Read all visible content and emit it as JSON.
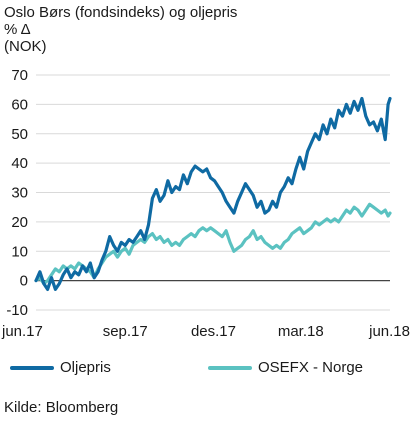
{
  "header": {
    "title": "Oslo Børs (fondsindeks) og oljepris",
    "unit_line1": "% Δ",
    "unit_line2": "(NOK)"
  },
  "source": "Kilde: Bloomberg",
  "colors": {
    "oljepris": "#0f6aa3",
    "osefx": "#5bc2c1",
    "grid": "#d9d9d9",
    "zero": "#444444"
  },
  "chart_data": {
    "type": "line",
    "title": "Oslo Børs (fondsindeks) og oljepris",
    "ylabel": "% Δ (NOK)",
    "xlabel": "",
    "ylim": [
      -10,
      70
    ],
    "yticks": [
      -10,
      0,
      10,
      20,
      30,
      40,
      50,
      60,
      70
    ],
    "xlim": [
      "2017-06-01",
      "2018-06-01"
    ],
    "xticks": [
      {
        "label": "jun.17",
        "date": "2017-06-01"
      },
      {
        "label": "sep.17",
        "date": "2017-09-01"
      },
      {
        "label": "des.17",
        "date": "2017-12-01"
      },
      {
        "label": "mar.18",
        "date": "2018-03-01"
      },
      {
        "label": "jun.18",
        "date": "2018-06-01"
      }
    ],
    "grid": true,
    "legend_position": "bottom",
    "series": [
      {
        "name": "Oljepris",
        "color": "#0f6aa3",
        "points": [
          [
            "2017-06-01",
            0
          ],
          [
            "2017-06-05",
            3
          ],
          [
            "2017-06-09",
            -1
          ],
          [
            "2017-06-13",
            -3
          ],
          [
            "2017-06-17",
            1
          ],
          [
            "2017-06-21",
            -3
          ],
          [
            "2017-06-25",
            -1
          ],
          [
            "2017-06-29",
            2
          ],
          [
            "2017-07-03",
            4
          ],
          [
            "2017-07-07",
            1
          ],
          [
            "2017-07-11",
            3
          ],
          [
            "2017-07-15",
            2
          ],
          [
            "2017-07-19",
            5
          ],
          [
            "2017-07-23",
            3
          ],
          [
            "2017-07-27",
            6
          ],
          [
            "2017-07-31",
            1
          ],
          [
            "2017-08-04",
            3
          ],
          [
            "2017-08-08",
            7
          ],
          [
            "2017-08-12",
            10
          ],
          [
            "2017-08-16",
            15
          ],
          [
            "2017-08-20",
            12
          ],
          [
            "2017-08-24",
            10
          ],
          [
            "2017-08-28",
            13
          ],
          [
            "2017-09-01",
            12
          ],
          [
            "2017-09-05",
            14
          ],
          [
            "2017-09-09",
            13
          ],
          [
            "2017-09-13",
            15
          ],
          [
            "2017-09-17",
            17
          ],
          [
            "2017-09-21",
            14
          ],
          [
            "2017-09-25",
            19
          ],
          [
            "2017-09-29",
            28
          ],
          [
            "2017-10-03",
            31
          ],
          [
            "2017-10-07",
            27
          ],
          [
            "2017-10-11",
            29
          ],
          [
            "2017-10-15",
            34
          ],
          [
            "2017-10-19",
            30
          ],
          [
            "2017-10-23",
            32
          ],
          [
            "2017-10-27",
            31
          ],
          [
            "2017-10-31",
            36
          ],
          [
            "2017-11-04",
            33
          ],
          [
            "2017-11-08",
            37
          ],
          [
            "2017-11-12",
            39
          ],
          [
            "2017-11-16",
            38
          ],
          [
            "2017-11-20",
            37
          ],
          [
            "2017-11-24",
            38
          ],
          [
            "2017-11-28",
            35
          ],
          [
            "2017-12-02",
            34
          ],
          [
            "2017-12-06",
            32
          ],
          [
            "2017-12-10",
            30
          ],
          [
            "2017-12-14",
            27
          ],
          [
            "2017-12-18",
            25
          ],
          [
            "2017-12-22",
            23
          ],
          [
            "2017-12-26",
            27
          ],
          [
            "2017-12-30",
            30
          ],
          [
            "2018-01-03",
            33
          ],
          [
            "2018-01-07",
            31
          ],
          [
            "2018-01-11",
            29
          ],
          [
            "2018-01-15",
            25
          ],
          [
            "2018-01-19",
            27
          ],
          [
            "2018-01-23",
            23
          ],
          [
            "2018-01-27",
            24
          ],
          [
            "2018-01-31",
            27
          ],
          [
            "2018-02-04",
            25
          ],
          [
            "2018-02-08",
            30
          ],
          [
            "2018-02-12",
            32
          ],
          [
            "2018-02-16",
            35
          ],
          [
            "2018-02-20",
            33
          ],
          [
            "2018-02-24",
            38
          ],
          [
            "2018-02-28",
            42
          ],
          [
            "2018-03-04",
            38
          ],
          [
            "2018-03-08",
            44
          ],
          [
            "2018-03-12",
            47
          ],
          [
            "2018-03-16",
            50
          ],
          [
            "2018-03-20",
            48
          ],
          [
            "2018-03-24",
            53
          ],
          [
            "2018-03-28",
            50
          ],
          [
            "2018-04-01",
            55
          ],
          [
            "2018-04-05",
            52
          ],
          [
            "2018-04-09",
            58
          ],
          [
            "2018-04-13",
            56
          ],
          [
            "2018-04-17",
            60
          ],
          [
            "2018-04-21",
            57
          ],
          [
            "2018-04-25",
            61
          ],
          [
            "2018-04-29",
            58
          ],
          [
            "2018-05-03",
            62
          ],
          [
            "2018-05-07",
            56
          ],
          [
            "2018-05-11",
            53
          ],
          [
            "2018-05-15",
            54
          ],
          [
            "2018-05-19",
            51
          ],
          [
            "2018-05-23",
            55
          ],
          [
            "2018-05-27",
            48
          ],
          [
            "2018-05-30",
            60
          ],
          [
            "2018-06-01",
            62
          ]
        ]
      },
      {
        "name": "OSEFX - Norge",
        "color": "#5bc2c1",
        "points": [
          [
            "2017-06-01",
            0
          ],
          [
            "2017-06-05",
            1
          ],
          [
            "2017-06-09",
            -1
          ],
          [
            "2017-06-13",
            0
          ],
          [
            "2017-06-17",
            2
          ],
          [
            "2017-06-21",
            4
          ],
          [
            "2017-06-25",
            3
          ],
          [
            "2017-06-29",
            5
          ],
          [
            "2017-07-03",
            4
          ],
          [
            "2017-07-07",
            5
          ],
          [
            "2017-07-11",
            4
          ],
          [
            "2017-07-15",
            6
          ],
          [
            "2017-07-19",
            5
          ],
          [
            "2017-07-23",
            4
          ],
          [
            "2017-07-27",
            3
          ],
          [
            "2017-07-31",
            1
          ],
          [
            "2017-08-04",
            4
          ],
          [
            "2017-08-08",
            6
          ],
          [
            "2017-08-12",
            8
          ],
          [
            "2017-08-16",
            9
          ],
          [
            "2017-08-20",
            10
          ],
          [
            "2017-08-24",
            8
          ],
          [
            "2017-08-28",
            10
          ],
          [
            "2017-09-01",
            11
          ],
          [
            "2017-09-05",
            9
          ],
          [
            "2017-09-09",
            12
          ],
          [
            "2017-09-13",
            13
          ],
          [
            "2017-09-17",
            14
          ],
          [
            "2017-09-21",
            13
          ],
          [
            "2017-09-25",
            15
          ],
          [
            "2017-09-29",
            16
          ],
          [
            "2017-10-03",
            14
          ],
          [
            "2017-10-07",
            15
          ],
          [
            "2017-10-11",
            13
          ],
          [
            "2017-10-15",
            14
          ],
          [
            "2017-10-19",
            12
          ],
          [
            "2017-10-23",
            13
          ],
          [
            "2017-10-27",
            12
          ],
          [
            "2017-10-31",
            14
          ],
          [
            "2017-11-04",
            15
          ],
          [
            "2017-11-08",
            16
          ],
          [
            "2017-11-12",
            15
          ],
          [
            "2017-11-16",
            17
          ],
          [
            "2017-11-20",
            18
          ],
          [
            "2017-11-24",
            17
          ],
          [
            "2017-11-28",
            18
          ],
          [
            "2017-12-02",
            17
          ],
          [
            "2017-12-06",
            16
          ],
          [
            "2017-12-10",
            15
          ],
          [
            "2017-12-14",
            17
          ],
          [
            "2017-12-18",
            13
          ],
          [
            "2017-12-22",
            10
          ],
          [
            "2017-12-26",
            11
          ],
          [
            "2017-12-30",
            12
          ],
          [
            "2018-01-03",
            14
          ],
          [
            "2018-01-07",
            15
          ],
          [
            "2018-01-11",
            17
          ],
          [
            "2018-01-15",
            14
          ],
          [
            "2018-01-19",
            15
          ],
          [
            "2018-01-23",
            13
          ],
          [
            "2018-01-27",
            12
          ],
          [
            "2018-01-31",
            11
          ],
          [
            "2018-02-04",
            12
          ],
          [
            "2018-02-08",
            11
          ],
          [
            "2018-02-12",
            13
          ],
          [
            "2018-02-16",
            14
          ],
          [
            "2018-02-20",
            16
          ],
          [
            "2018-02-24",
            17
          ],
          [
            "2018-02-28",
            18
          ],
          [
            "2018-03-04",
            16
          ],
          [
            "2018-03-08",
            17
          ],
          [
            "2018-03-12",
            18
          ],
          [
            "2018-03-16",
            20
          ],
          [
            "2018-03-20",
            19
          ],
          [
            "2018-03-24",
            20
          ],
          [
            "2018-03-28",
            21
          ],
          [
            "2018-04-01",
            20
          ],
          [
            "2018-04-05",
            21
          ],
          [
            "2018-04-09",
            20
          ],
          [
            "2018-04-13",
            22
          ],
          [
            "2018-04-17",
            24
          ],
          [
            "2018-04-21",
            23
          ],
          [
            "2018-04-25",
            25
          ],
          [
            "2018-04-29",
            24
          ],
          [
            "2018-05-03",
            22
          ],
          [
            "2018-05-07",
            24
          ],
          [
            "2018-05-11",
            26
          ],
          [
            "2018-05-15",
            25
          ],
          [
            "2018-05-19",
            24
          ],
          [
            "2018-05-23",
            23
          ],
          [
            "2018-05-27",
            24
          ],
          [
            "2018-05-30",
            22
          ],
          [
            "2018-06-01",
            23
          ]
        ]
      }
    ]
  }
}
